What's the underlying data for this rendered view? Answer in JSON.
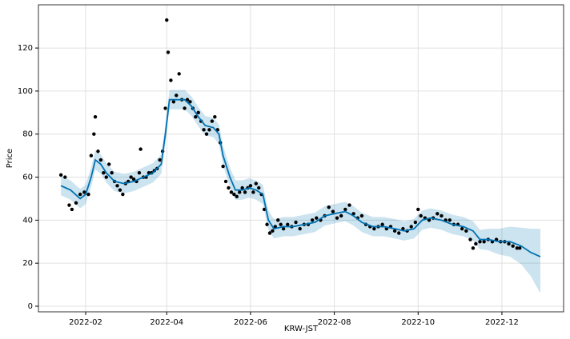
{
  "chart_data": {
    "type": "forecast",
    "x_label": "KRW-JST",
    "y_label": "Price",
    "xlim": [
      -3.4,
      378.9
    ],
    "ylim": [
      -2.6,
      140.1
    ],
    "xticks": [
      {
        "value": 31,
        "label": "2022-02"
      },
      {
        "value": 90,
        "label": "2022-04"
      },
      {
        "value": 151,
        "label": "2022-06"
      },
      {
        "value": 212,
        "label": "2022-08"
      },
      {
        "value": 273,
        "label": "2022-10"
      },
      {
        "value": 334,
        "label": "2022-12"
      }
    ],
    "yticks": [
      0,
      20,
      40,
      60,
      80,
      100,
      120
    ],
    "grid": true,
    "observed": {
      "color": "#000000",
      "x": [
        13,
        16,
        19,
        21,
        24,
        27,
        30,
        33,
        35,
        37,
        38,
        40,
        42,
        44,
        46,
        48,
        50,
        52,
        54,
        56,
        58,
        60,
        62,
        64,
        66,
        68,
        70,
        71,
        73,
        75,
        77,
        79,
        81,
        83,
        85,
        87,
        89,
        90,
        91,
        93,
        95,
        97,
        99,
        101,
        103,
        105,
        107,
        109,
        111,
        113,
        115,
        117,
        119,
        121,
        123,
        125,
        127,
        129,
        131,
        133,
        135,
        137,
        139,
        141,
        143,
        145,
        147,
        149,
        151,
        153,
        155,
        157,
        159,
        161,
        163,
        165,
        167,
        169,
        171,
        173,
        175,
        178,
        181,
        184,
        187,
        190,
        193,
        196,
        199,
        202,
        205,
        208,
        211,
        214,
        217,
        220,
        223,
        226,
        229,
        232,
        235,
        238,
        241,
        244,
        247,
        250,
        253,
        256,
        259,
        262,
        265,
        268,
        271,
        273,
        275,
        278,
        281,
        284,
        287,
        290,
        293,
        296,
        299,
        302,
        305,
        308,
        311,
        313,
        315,
        318,
        321,
        324,
        327,
        330,
        333,
        336,
        339,
        342,
        345,
        347
      ],
      "values": [
        61,
        60,
        47,
        45,
        48,
        52,
        53,
        52,
        70,
        80,
        88,
        72,
        68,
        62,
        60,
        66,
        62,
        58,
        56,
        54,
        52,
        57,
        58,
        60,
        59,
        58,
        62,
        73,
        60,
        60,
        62,
        62,
        63,
        64,
        68,
        72,
        92,
        133,
        118,
        105,
        95,
        98,
        108,
        96,
        92,
        96,
        95,
        92,
        88,
        90,
        86,
        82,
        80,
        82,
        86,
        88,
        82,
        76,
        65,
        58,
        55,
        53,
        52,
        51,
        53,
        55,
        53,
        55,
        56,
        53,
        57,
        55,
        52,
        45,
        38,
        34,
        35,
        37,
        40,
        38,
        36,
        38,
        37,
        39,
        36,
        38,
        38,
        40,
        41,
        40,
        42,
        46,
        44,
        41,
        42,
        45,
        47,
        43,
        41,
        42,
        38,
        37,
        36,
        37,
        38,
        36,
        37,
        35,
        34,
        36,
        35,
        37,
        39,
        45,
        42,
        41,
        40,
        41,
        43,
        42,
        40,
        40,
        38,
        38,
        36,
        35,
        31,
        27,
        29,
        30,
        30,
        31,
        30,
        31,
        30,
        30,
        29,
        28,
        27,
        27
      ]
    },
    "forecast": {
      "color": "#0072B2",
      "x": [
        13,
        20,
        27,
        31,
        35,
        38,
        42,
        46,
        52,
        59,
        66,
        73,
        80,
        86,
        89,
        92,
        97,
        103,
        108,
        113,
        118,
        124,
        128,
        131,
        136,
        140,
        145,
        150,
        155,
        160,
        164,
        168,
        175,
        182,
        190,
        198,
        205,
        212,
        220,
        226,
        232,
        240,
        248,
        256,
        263,
        270,
        276,
        282,
        290,
        298,
        306,
        313,
        318,
        324,
        332,
        340,
        348,
        355,
        362
      ],
      "values": [
        56,
        54,
        50,
        52,
        60,
        68,
        66,
        62,
        58,
        57,
        58,
        60,
        62,
        66,
        80,
        96,
        96,
        96,
        93,
        88,
        84,
        83,
        80,
        70,
        60,
        54,
        54,
        55,
        54,
        52,
        40,
        36,
        37,
        37,
        38,
        39,
        42,
        43,
        44,
        42,
        39,
        37,
        37,
        36,
        35,
        36,
        40,
        41,
        40,
        38,
        37,
        35,
        31,
        31,
        30,
        30,
        28,
        25,
        23
      ],
      "lower": [
        51.5,
        49.5,
        45.5,
        47.5,
        55.5,
        63.5,
        61.5,
        57.5,
        53.5,
        52.5,
        53.5,
        55.5,
        57.5,
        61.5,
        75.5,
        91.5,
        91.5,
        91.5,
        88.5,
        83.5,
        79.5,
        78.5,
        75.5,
        65.5,
        55.5,
        49.5,
        49.5,
        50.5,
        49.5,
        47.5,
        35.5,
        31.5,
        32.5,
        32.5,
        33.5,
        34.5,
        37.5,
        38.5,
        39.5,
        37.5,
        34.5,
        32.5,
        32.5,
        31.5,
        30.5,
        31.5,
        35.5,
        36.5,
        35.5,
        33.5,
        32.5,
        30.5,
        26.5,
        26,
        24,
        23,
        19.5,
        14,
        6
      ],
      "upper": [
        60.5,
        58.5,
        54.5,
        56.5,
        64.5,
        72.5,
        70.5,
        66.5,
        62.5,
        61.5,
        62.5,
        64.5,
        66.5,
        70.5,
        84.5,
        100.5,
        100.5,
        100.5,
        97.5,
        92.5,
        88.5,
        87.5,
        84.5,
        74.5,
        64.5,
        58.5,
        58.5,
        59.5,
        58.5,
        56.5,
        44.5,
        40.5,
        41.5,
        41.5,
        42.5,
        43.5,
        46.5,
        47.5,
        48.5,
        46.5,
        43.5,
        41.5,
        41.5,
        40.5,
        39.5,
        40.5,
        44.5,
        45.5,
        44.5,
        42.5,
        41.5,
        39.5,
        35.5,
        36,
        36,
        37,
        36.5,
        36,
        36
      ]
    }
  }
}
